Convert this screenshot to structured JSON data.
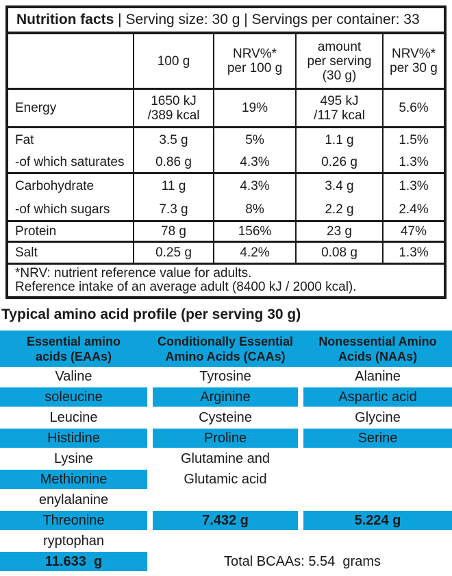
{
  "colors": {
    "cyan": "#0da2dc",
    "text": "#1a1a1a",
    "border": "#1a1a1a"
  },
  "nutrition": {
    "title_bold": "Nutrition facts",
    "title_rest": " | Serving size: 30 g | Servings per container: 33",
    "col_headers": {
      "c1": {
        "l1": "100 g"
      },
      "c2": {
        "l1": "NRV%*",
        "l2": "per 100 g"
      },
      "c3": {
        "l1": "amount",
        "l2": "per serving",
        "l3": "(30 g)"
      },
      "c4": {
        "l1": "NRV%*",
        "l2": "per 30 g"
      }
    },
    "rows": [
      {
        "label": "Energy",
        "v100_l1": "1650 kJ",
        "v100_l2": "/389 kcal",
        "nrv100": "19%",
        "serv_l1": "495 kJ",
        "serv_l2": "/117 kcal",
        "nrv30": "5.6%"
      },
      {
        "label": "Fat",
        "v100": "3.5 g",
        "nrv100": "5%",
        "serv": "1.1 g",
        "nrv30": "1.5%"
      },
      {
        "label": "-of which saturates",
        "v100": "0.86 g",
        "nrv100": "4.3%",
        "serv": "0.26 g",
        "nrv30": "1.3%"
      },
      {
        "label": "Carbohydrate",
        "v100": "11 g",
        "nrv100": "4.3%",
        "serv": "3.4 g",
        "nrv30": "1.3%"
      },
      {
        "label": "-of which sugars",
        "v100": "7.3 g",
        "nrv100": "8%",
        "serv": "2.2 g",
        "nrv30": "2.4%"
      },
      {
        "label": "Protein",
        "v100": "78 g",
        "nrv100": "156%",
        "serv": "23 g",
        "nrv30": "47%"
      },
      {
        "label": "Salt",
        "v100": "0.25 g",
        "nrv100": "4.2%",
        "serv": "0.08 g",
        "nrv30": "1.3%"
      }
    ],
    "footnote_line1": "*NRV: nutrient reference value for adults.",
    "footnote_line2": "Reference intake of an average adult (8400 kJ / 2000 kcal)."
  },
  "amino": {
    "title": "Typical amino acid profile (per serving 30 g)",
    "headers": [
      {
        "l1": "Essential amino",
        "l2": "acids (EAAs)"
      },
      {
        "l1": "Conditionally Essential",
        "l2": "Amino Acids (CAAs)"
      },
      {
        "l1": "Nonessential Amino",
        "l2": "Acids (NAAs)"
      }
    ],
    "rows": [
      {
        "cells": [
          {
            "t": "Valine"
          },
          {
            "t": "Tyrosine"
          },
          {
            "t": "Alanine"
          }
        ]
      },
      {
        "cells": [
          {
            "t": "soleucine"
          },
          {
            "t": "Arginine"
          },
          {
            "t": "Aspartic acid"
          }
        ]
      },
      {
        "cells": [
          {
            "t": "Leucine"
          },
          {
            "t": "Cysteine"
          },
          {
            "t": "Glycine"
          }
        ]
      },
      {
        "cells": [
          {
            "t": "Histidine"
          },
          {
            "t": "Proline"
          },
          {
            "t": "Serine"
          }
        ]
      },
      {
        "cells": [
          {
            "t": "Lysine"
          },
          {
            "t": "Glutamine and"
          },
          {
            "t": ""
          }
        ]
      },
      {
        "cells": [
          {
            "t": "Methionine"
          },
          {
            "t": "Glutamic acid"
          },
          {
            "t": ""
          }
        ]
      },
      {
        "cells": [
          {
            "t": "enylalanine"
          },
          {
            "t": ""
          },
          {
            "t": ""
          }
        ]
      },
      {
        "cells": [
          {
            "t": "Threonine"
          },
          {
            "t": "7.432 g"
          },
          {
            "t": "5.224 g"
          }
        ]
      },
      {
        "cells": [
          {
            "t": "ryptophan"
          },
          {
            "t": ""
          },
          {
            "t": ""
          }
        ]
      },
      {
        "cells": [
          {
            "t": "11.633  g"
          }
        ]
      }
    ],
    "total_bcaas": "Total BCAAs: 5.54  grams"
  }
}
